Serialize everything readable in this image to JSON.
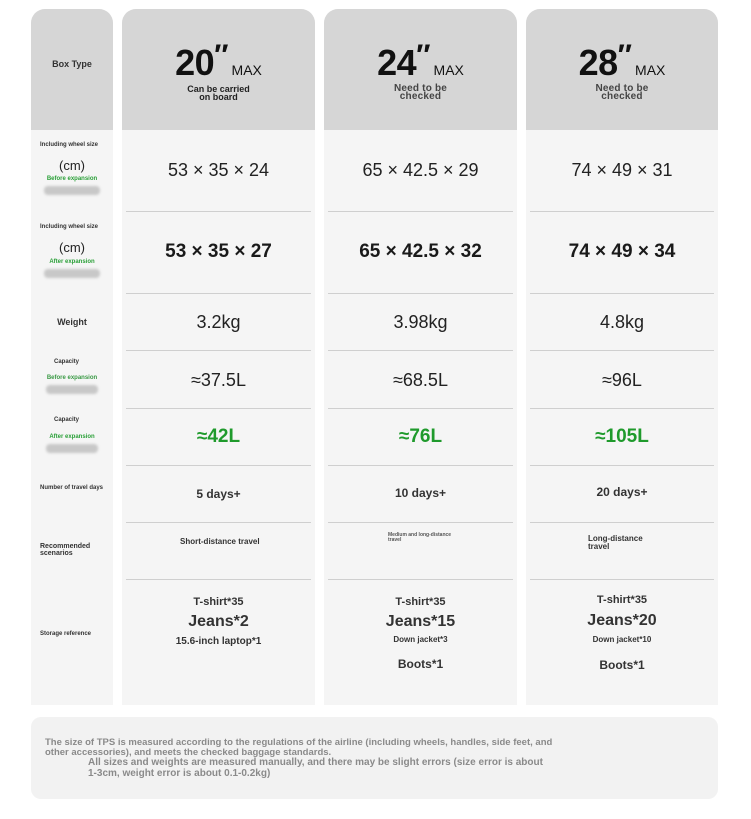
{
  "header": {
    "box_type": "Box Type",
    "columns": [
      {
        "size": "20",
        "quote": "″",
        "unit": "MAX",
        "note": "Can be carried on board"
      },
      {
        "size": "24",
        "quote": "″",
        "unit": "MAX",
        "note": "Need to be checked"
      },
      {
        "size": "28",
        "quote": "″",
        "unit": "MAX",
        "note": "Need to be checked"
      }
    ]
  },
  "labels": {
    "size_wheel_1": "Including wheel size",
    "cm_1": "(cm)",
    "expansion_before": "Before expansion",
    "size_wheel_2": "Including wheel size",
    "cm_2": "(cm)",
    "expansion_after": "After expansion",
    "weight": "Weight",
    "capacity_1": "Capacity",
    "capacity_1_sub": "Before expansion",
    "capacity_2": "Capacity",
    "capacity_2_sub": "After expansion",
    "travel_days": "Number of travel days",
    "scenarios": "Recommended scenarios",
    "storage": "Storage reference"
  },
  "rows": {
    "size_before": [
      "53 × 35 × 24",
      "65 × 42.5 × 29",
      "74 × 49 × 31"
    ],
    "size_after": [
      "53 × 35 × 27",
      "65 × 42.5 × 32",
      "74 × 49 × 34"
    ],
    "weight": [
      "3.2kg",
      "3.98kg",
      "4.8kg"
    ],
    "capacity_before": [
      "≈37.5L",
      "≈68.5L",
      "≈96L"
    ],
    "capacity_after": [
      "≈42L",
      "≈76L",
      "≈105L"
    ],
    "days": [
      "5 days+",
      "10 days+",
      "20 days+"
    ],
    "scenario": [
      "Short-distance travel",
      "Medium and long-distance travel",
      "Long-distance travel"
    ]
  },
  "storage": [
    {
      "tshirt": "T-shirt*35",
      "jeans": "Jeans*2",
      "extra": "15.6-inch laptop*1",
      "boots": ""
    },
    {
      "tshirt": "T-shirt*35",
      "jeans": "Jeans*15",
      "extra": "Down jacket*3",
      "boots": "Boots*1"
    },
    {
      "tshirt": "T-shirt*35",
      "jeans": "Jeans*20",
      "extra": "Down jacket*10",
      "boots": "Boots*1"
    }
  ],
  "footer": {
    "line1": "The size of TPS is measured according to the regulations of the airline (including wheels, handles, side feet, and other accessories), and meets the checked baggage standards.",
    "line2": "All sizes and weights are measured manually, and there may be slight errors (size error is about 1-3cm, weight error is about 0.1-0.2kg)"
  },
  "colors": {
    "green": "#1f9a2c",
    "header_bg": "#d6d6d6",
    "column_bg": "#f5f5f5"
  }
}
